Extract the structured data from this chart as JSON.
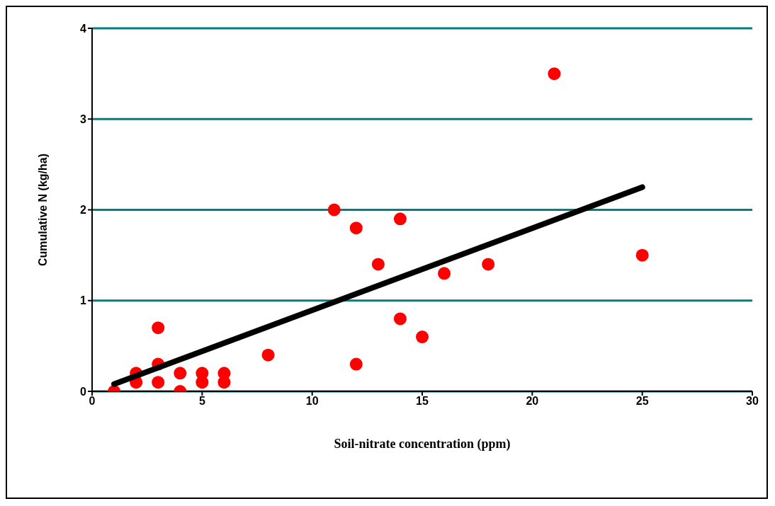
{
  "chart_data": {
    "type": "scatter",
    "xlabel": "Soil-nitrate concentration (ppm)",
    "ylabel": "Cumulative N (kg/ha)",
    "xlim": [
      0,
      30
    ],
    "xticks": [
      0,
      5,
      10,
      15,
      20,
      25,
      30
    ],
    "ylim": [
      0,
      4
    ],
    "yticks": [
      0,
      1,
      2,
      3,
      4
    ],
    "grid": "y",
    "series": [
      {
        "marker": "circle",
        "color": "#ff0000",
        "x": [
          1,
          2,
          2,
          3,
          3,
          3,
          4,
          4,
          5,
          5,
          6,
          6,
          8,
          11,
          12,
          12,
          13,
          14,
          14,
          15,
          16,
          18,
          21,
          25
        ],
        "values": [
          0,
          0.2,
          0.1,
          0.7,
          0.3,
          0.1,
          0.2,
          0,
          0.2,
          0.1,
          0.2,
          0.1,
          0.4,
          2.0,
          1.8,
          0.3,
          1.4,
          1.9,
          0.8,
          0.6,
          1.3,
          1.4,
          3.5,
          1.5
        ]
      },
      {
        "type": "line",
        "color": "#000000",
        "x": [
          1,
          25
        ],
        "values": [
          0.08,
          2.25
        ]
      }
    ]
  }
}
